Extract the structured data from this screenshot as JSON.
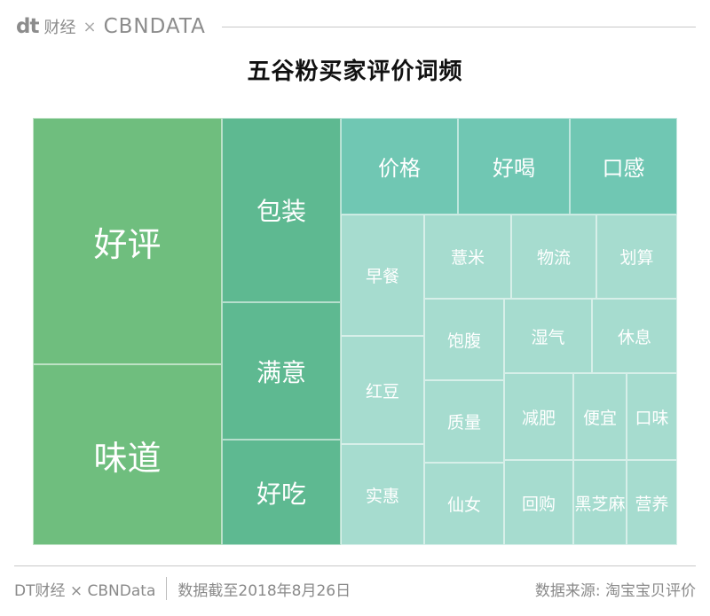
{
  "header": {
    "logo_dt": "dt",
    "logo_cn": "财经",
    "logo_x": "×",
    "logo_partner": "CBNDATA"
  },
  "chart_data": {
    "type": "treemap",
    "title": "五谷粉买家评价词频",
    "items": [
      {
        "label": "好评",
        "tier": 1,
        "color": "#6fbe7e"
      },
      {
        "label": "味道",
        "tier": 1,
        "color": "#6fbe7e"
      },
      {
        "label": "包装",
        "tier": 2,
        "color": "#5eb991"
      },
      {
        "label": "满意",
        "tier": 2,
        "color": "#5eb991"
      },
      {
        "label": "好吃",
        "tier": 2,
        "color": "#5eb991"
      },
      {
        "label": "价格",
        "tier": 3,
        "color": "#70c7b3"
      },
      {
        "label": "好喝",
        "tier": 3,
        "color": "#70c7b3"
      },
      {
        "label": "口感",
        "tier": 3,
        "color": "#70c7b3"
      },
      {
        "label": "早餐",
        "tier": 4,
        "color": "#a6dccf"
      },
      {
        "label": "薏米",
        "tier": 4,
        "color": "#a6dccf"
      },
      {
        "label": "物流",
        "tier": 4,
        "color": "#a6dccf"
      },
      {
        "label": "划算",
        "tier": 4,
        "color": "#a6dccf"
      },
      {
        "label": "饱腹",
        "tier": 4,
        "color": "#a6dccf"
      },
      {
        "label": "湿气",
        "tier": 4,
        "color": "#a6dccf"
      },
      {
        "label": "休息",
        "tier": 4,
        "color": "#a6dccf"
      },
      {
        "label": "红豆",
        "tier": 4,
        "color": "#a6dccf"
      },
      {
        "label": "减肥",
        "tier": 4,
        "color": "#a6dccf"
      },
      {
        "label": "便宜",
        "tier": 4,
        "color": "#a6dccf"
      },
      {
        "label": "口味",
        "tier": 4,
        "color": "#a6dccf"
      },
      {
        "label": "质量",
        "tier": 4,
        "color": "#a6dccf"
      },
      {
        "label": "实惠",
        "tier": 4,
        "color": "#a6dccf"
      },
      {
        "label": "仙女",
        "tier": 4,
        "color": "#a6dccf"
      },
      {
        "label": "回购",
        "tier": 4,
        "color": "#a6dccf"
      },
      {
        "label": "黑芝麻",
        "tier": 4,
        "color": "#a6dccf"
      },
      {
        "label": "营养",
        "tier": 4,
        "color": "#a6dccf"
      }
    ]
  },
  "footer": {
    "brand": "DT财经 × CBNData",
    "date": "数据截至2018年8月26日",
    "source": "数据来源: 淘宝宝贝评价"
  }
}
